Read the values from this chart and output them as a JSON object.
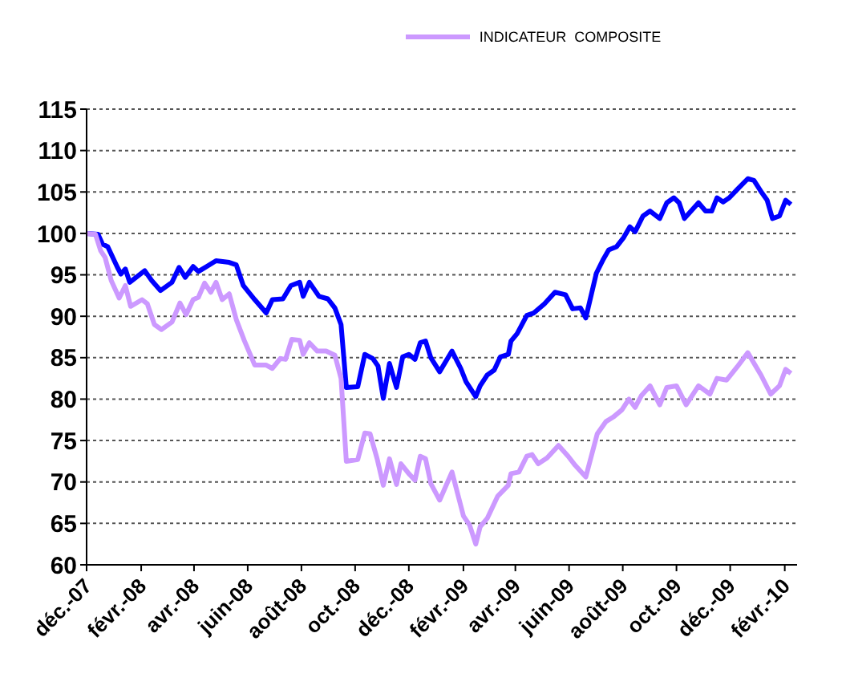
{
  "chart_data": {
    "type": "line",
    "xlim": [
      "2007-12-01",
      "2010-02-15"
    ],
    "xticks": [
      {
        "value": "2007-12-01",
        "label": "déc.-07"
      },
      {
        "value": "2008-02-01",
        "label": "févr.-08"
      },
      {
        "value": "2008-04-01",
        "label": "avr.-08"
      },
      {
        "value": "2008-06-01",
        "label": "juin-08"
      },
      {
        "value": "2008-08-01",
        "label": "août-08"
      },
      {
        "value": "2008-10-01",
        "label": "oct.-08"
      },
      {
        "value": "2008-12-01",
        "label": "déc.-08"
      },
      {
        "value": "2009-02-01",
        "label": "févr.-09"
      },
      {
        "value": "2009-04-01",
        "label": "avr.-09"
      },
      {
        "value": "2009-06-01",
        "label": "juin-09"
      },
      {
        "value": "2009-08-01",
        "label": "août-09"
      },
      {
        "value": "2009-10-01",
        "label": "oct.-09"
      },
      {
        "value": "2009-12-01",
        "label": "déc.-09"
      },
      {
        "value": "2010-02-01",
        "label": "févr.-10"
      }
    ],
    "ylim": [
      60,
      115
    ],
    "yticks": [
      60,
      65,
      70,
      75,
      80,
      85,
      90,
      95,
      100,
      105,
      110,
      115
    ],
    "grid": "y",
    "legend": "top",
    "marker": "none",
    "line_style": "solid",
    "series": [
      {
        "color": "#0000ff",
        "x": [
          "2007-12-01",
          "2007-12-14",
          "2007-12-19",
          "2007-12-25",
          "2008-01-05",
          "2008-01-09",
          "2008-01-14",
          "2008-01-19",
          "2008-02-05",
          "2008-02-13",
          "2008-02-23",
          "2008-03-07",
          "2008-03-15",
          "2008-03-22",
          "2008-03-31",
          "2008-04-06",
          "2008-04-26",
          "2008-05-11",
          "2008-05-19",
          "2008-05-27",
          "2008-06-09",
          "2008-06-22",
          "2008-06-29",
          "2008-07-11",
          "2008-07-20",
          "2008-07-30",
          "2008-08-03",
          "2008-08-10",
          "2008-08-21",
          "2008-08-31",
          "2008-09-08",
          "2008-09-15",
          "2008-09-21",
          "2008-10-04",
          "2008-10-12",
          "2008-10-21",
          "2008-10-27",
          "2008-11-02",
          "2008-11-09",
          "2008-11-17",
          "2008-11-24",
          "2008-12-01",
          "2008-12-08",
          "2008-12-14",
          "2008-12-20",
          "2008-12-26",
          "2009-01-05",
          "2009-01-19",
          "2009-01-29",
          "2009-02-04",
          "2009-02-15",
          "2009-02-20",
          "2009-02-28",
          "2009-03-08",
          "2009-03-15",
          "2009-03-24",
          "2009-03-27",
          "2009-04-03",
          "2009-04-14",
          "2009-04-22",
          "2009-05-04",
          "2009-05-16",
          "2009-05-28",
          "2009-06-05",
          "2009-06-14",
          "2009-06-20",
          "2009-07-02",
          "2009-07-10",
          "2009-07-16",
          "2009-07-25",
          "2009-08-02",
          "2009-08-09",
          "2009-08-15",
          "2009-08-24",
          "2009-09-01",
          "2009-09-12",
          "2009-09-20",
          "2009-09-28",
          "2009-10-04",
          "2009-10-10",
          "2009-10-26",
          "2009-11-03",
          "2009-11-10",
          "2009-11-16",
          "2009-11-23",
          "2009-11-30",
          "2009-12-09",
          "2009-12-21",
          "2009-12-28",
          "2010-01-06",
          "2010-01-12",
          "2010-01-18",
          "2010-01-26",
          "2010-02-02",
          "2010-02-08"
        ],
        "values": [
          100,
          99.9,
          98.7,
          98.4,
          95.9,
          95.1,
          95.7,
          94.1,
          95.5,
          94.3,
          93.1,
          94.1,
          95.9,
          94.7,
          96.0,
          95.4,
          96.7,
          96.5,
          96.2,
          93.7,
          92.0,
          90.4,
          92.0,
          92.1,
          93.7,
          94.1,
          92.4,
          94.1,
          92.4,
          92.1,
          91.0,
          89.0,
          81.4,
          81.5,
          85.4,
          84.9,
          84.0,
          80.1,
          84.3,
          81.4,
          85.1,
          85.4,
          84.8,
          86.8,
          87.0,
          85.0,
          83.3,
          85.8,
          83.7,
          82.1,
          80.3,
          81.6,
          82.9,
          83.5,
          85.1,
          85.4,
          87.0,
          87.9,
          90.1,
          90.4,
          91.5,
          92.9,
          92.6,
          90.9,
          91.0,
          89.8,
          95.2,
          96.9,
          98.0,
          98.4,
          99.5,
          100.8,
          100.2,
          102.1,
          102.7,
          101.8,
          103.7,
          104.3,
          103.7,
          101.8,
          103.7,
          102.7,
          102.7,
          104.3,
          103.8,
          104.3,
          105.3,
          106.6,
          106.4,
          104.9,
          104.0,
          101.8,
          102.1,
          104.0,
          103.5
        ]
      },
      {
        "name": "INDICATEUR  COMPOSITE",
        "color": "#cc99ff",
        "x": [
          "2007-12-01",
          "2007-12-11",
          "2007-12-17",
          "2007-12-22",
          "2007-12-29",
          "2008-01-07",
          "2008-01-14",
          "2008-01-20",
          "2008-02-02",
          "2008-02-08",
          "2008-02-16",
          "2008-02-24",
          "2008-03-07",
          "2008-03-16",
          "2008-03-23",
          "2008-03-31",
          "2008-04-06",
          "2008-04-13",
          "2008-04-20",
          "2008-04-26",
          "2008-05-03",
          "2008-05-11",
          "2008-05-19",
          "2008-05-28",
          "2008-06-09",
          "2008-06-22",
          "2008-06-29",
          "2008-07-08",
          "2008-07-14",
          "2008-07-21",
          "2008-07-30",
          "2008-08-03",
          "2008-08-10",
          "2008-08-19",
          "2008-08-29",
          "2008-09-08",
          "2008-09-15",
          "2008-09-21",
          "2008-10-04",
          "2008-10-12",
          "2008-10-18",
          "2008-10-26",
          "2008-11-02",
          "2008-11-09",
          "2008-11-17",
          "2008-11-22",
          "2008-12-01",
          "2008-12-08",
          "2008-12-14",
          "2008-12-20",
          "2008-12-26",
          "2009-01-05",
          "2009-01-19",
          "2009-02-01",
          "2009-02-08",
          "2009-02-15",
          "2009-02-20",
          "2009-02-28",
          "2009-03-12",
          "2009-03-24",
          "2009-03-27",
          "2009-04-05",
          "2009-04-14",
          "2009-04-20",
          "2009-04-27",
          "2009-05-07",
          "2009-05-20",
          "2009-05-31",
          "2009-06-08",
          "2009-06-20",
          "2009-07-03",
          "2009-07-13",
          "2009-07-22",
          "2009-07-31",
          "2009-08-08",
          "2009-08-15",
          "2009-08-22",
          "2009-09-01",
          "2009-09-12",
          "2009-09-20",
          "2009-10-01",
          "2009-10-12",
          "2009-10-26",
          "2009-11-08",
          "2009-11-16",
          "2009-11-27",
          "2009-12-09",
          "2009-12-21",
          "2010-01-05",
          "2010-01-16",
          "2010-01-26",
          "2010-02-02",
          "2010-02-08"
        ],
        "values": [
          100,
          99.9,
          97.9,
          97.1,
          94.3,
          92.2,
          93.7,
          91.2,
          92.0,
          91.5,
          89.0,
          88.4,
          89.3,
          91.6,
          90.2,
          92.0,
          92.3,
          94.0,
          92.9,
          94.1,
          92.0,
          92.7,
          89.6,
          87.1,
          84.1,
          84.1,
          83.7,
          84.9,
          84.8,
          87.2,
          87.1,
          85.4,
          86.8,
          85.8,
          85.8,
          85.3,
          82.5,
          72.5,
          72.7,
          75.9,
          75.8,
          72.8,
          69.6,
          72.8,
          69.7,
          72.2,
          71.0,
          70.2,
          73.1,
          72.8,
          69.8,
          67.8,
          71.2,
          65.9,
          64.8,
          62.5,
          64.6,
          65.6,
          68.3,
          69.6,
          71.0,
          71.2,
          73.1,
          73.3,
          72.2,
          72.9,
          74.4,
          73.1,
          72.0,
          70.6,
          75.8,
          77.3,
          77.9,
          78.7,
          80.0,
          79.0,
          80.4,
          81.6,
          79.3,
          81.4,
          81.6,
          79.3,
          81.6,
          80.6,
          82.5,
          82.3,
          83.9,
          85.6,
          82.9,
          80.6,
          81.6,
          83.6,
          83.1
        ]
      }
    ]
  }
}
